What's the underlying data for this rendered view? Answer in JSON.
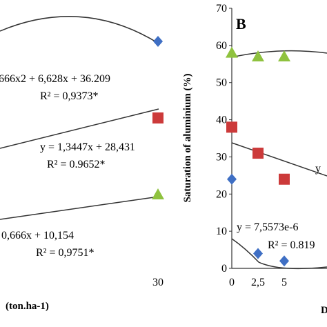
{
  "chart_data": [
    {
      "type": "scatter",
      "panel": "left",
      "xlabel": "(ton.ha-1)",
      "x_ticks": [
        "30"
      ],
      "series": [
        {
          "marker": "diamond",
          "color": "#3f6fc4",
          "points": [
            {
              "x": 30,
              "y": 60
            }
          ],
          "equation": "666x2 + 6,628x + 36.209",
          "r2": "R² = 0,9373*"
        },
        {
          "marker": "square",
          "color": "#cc3a3a",
          "points": [
            {
              "x": 30,
              "y": 40
            }
          ],
          "equation": "y = 1,3447x + 28,431",
          "r2": "R² = 0.9652*"
        },
        {
          "marker": "triangle",
          "color": "#8fc23f",
          "points": [
            {
              "x": 30,
              "y": 20
            }
          ],
          "equation": "0,666x + 10,154",
          "r2": "R² = 0,9751*"
        }
      ]
    },
    {
      "type": "scatter",
      "panel": "right",
      "panel_label": "B",
      "ylabel": "Saturation of aluminium (%)",
      "ylim": [
        0,
        70
      ],
      "y_ticks": [
        0,
        10,
        20,
        30,
        40,
        50,
        60,
        70
      ],
      "x_ticks": [
        "0",
        "2,5",
        "5"
      ],
      "x_tick_values": [
        0,
        2.5,
        5
      ],
      "axis_label_fragment": "D",
      "series": [
        {
          "marker": "triangle",
          "color": "#8fc23f",
          "points": [
            {
              "x": 0,
              "y": 58
            },
            {
              "x": 2.5,
              "y": 57
            },
            {
              "x": 5,
              "y": 57
            }
          ]
        },
        {
          "marker": "square",
          "color": "#cc3a3a",
          "points": [
            {
              "x": 0,
              "y": 38
            },
            {
              "x": 2.5,
              "y": 31
            },
            {
              "x": 5,
              "y": 24
            }
          ],
          "equation": "y"
        },
        {
          "marker": "diamond",
          "color": "#3f6fc4",
          "points": [
            {
              "x": 0,
              "y": 24
            },
            {
              "x": 2.5,
              "y": 4
            },
            {
              "x": 5,
              "y": 2
            }
          ],
          "equation": "y = 7,5573e-6",
          "r2": "R² = 0.819"
        }
      ]
    }
  ]
}
